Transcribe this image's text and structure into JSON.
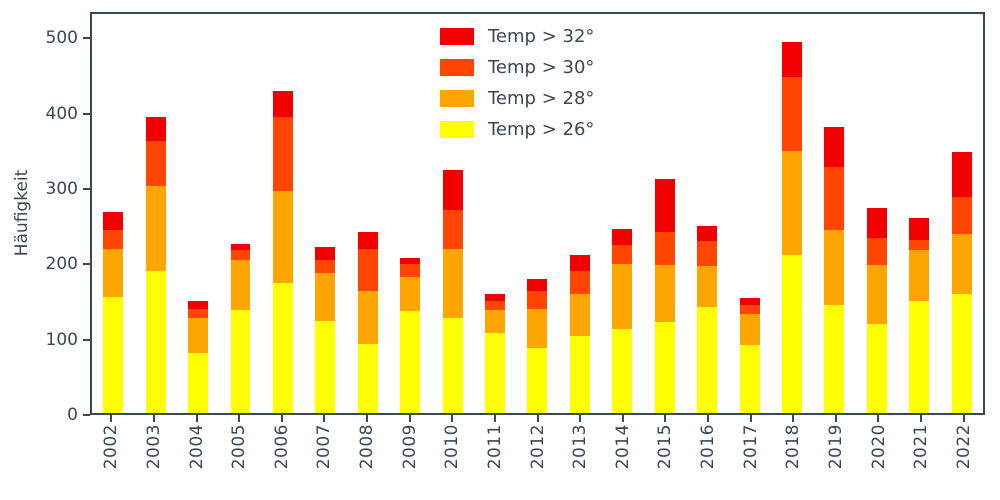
{
  "chart_data": {
    "type": "bar",
    "stacked": true,
    "title": "",
    "xlabel": "",
    "ylabel": "Häufigkeit",
    "categories": [
      "2002",
      "2003",
      "2004",
      "2005",
      "2006",
      "2007",
      "2008",
      "2009",
      "2010",
      "2011",
      "2012",
      "2013",
      "2014",
      "2015",
      "2016",
      "2017",
      "2018",
      "2019",
      "2020",
      "2021",
      "2022"
    ],
    "series": [
      {
        "name": "Temp > 32°",
        "color": "#f20000",
        "values": [
          25,
          32,
          10,
          9,
          35,
          18,
          23,
          8,
          54,
          9,
          17,
          22,
          22,
          71,
          21,
          9,
          48,
          53,
          40,
          29,
          60
        ]
      },
      {
        "name": "Temp > 30°",
        "color": "#ff4500",
        "values": [
          25,
          60,
          12,
          13,
          99,
          17,
          57,
          18,
          52,
          12,
          23,
          30,
          25,
          45,
          33,
          12,
          98,
          85,
          37,
          14,
          50
        ]
      },
      {
        "name": "Temp > 28°",
        "color": "#ffa500",
        "values": [
          65,
          115,
          48,
          67,
          123,
          65,
          70,
          45,
          92,
          31,
          53,
          57,
          87,
          76,
          55,
          42,
          140,
          100,
          78,
          68,
          80
        ]
      },
      {
        "name": "Temp > 26°",
        "color": "#ffff00",
        "values": [
          155,
          190,
          80,
          138,
          175,
          123,
          93,
          137,
          128,
          107,
          87,
          103,
          113,
          122,
          142,
          91,
          212,
          145,
          120,
          150,
          160
        ]
      }
    ],
    "stack_order_bottom_to_top": [
      "Temp > 26°",
      "Temp > 28°",
      "Temp > 30°",
      "Temp > 32°"
    ],
    "yticks": [
      0,
      100,
      200,
      300,
      400,
      500
    ],
    "ylim": [
      0,
      535
    ],
    "grid": false,
    "legend_position": "upper center",
    "axis_color": "#3b4754"
  }
}
